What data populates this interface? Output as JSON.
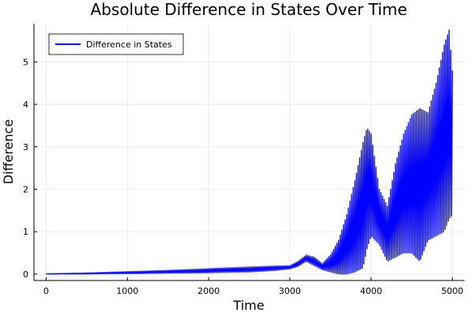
{
  "chart_data": {
    "type": "line",
    "title": "Absolute Difference in States Over Time",
    "xlabel": "Time",
    "ylabel": "Difference",
    "xlim": [
      -150,
      5150
    ],
    "ylim": [
      -0.15,
      5.9
    ],
    "xticks": [
      0,
      1000,
      2000,
      3000,
      4000,
      5000
    ],
    "yticks": [
      0,
      1,
      2,
      3,
      4,
      5
    ],
    "xtick_labels": [
      "0",
      "1000",
      "2000",
      "3000",
      "4000",
      "5000"
    ],
    "ytick_labels": [
      "0",
      "1",
      "2",
      "3",
      "4",
      "5"
    ],
    "grid": true,
    "legend_position": "top-left",
    "series": [
      {
        "name": "Difference in States",
        "color": "#0000ff",
        "envelope": {
          "x": [
            0,
            500,
            1000,
            1500,
            2000,
            2500,
            2800,
            3000,
            3100,
            3200,
            3300,
            3400,
            3500,
            3600,
            3700,
            3800,
            3900,
            3950,
            4000,
            4100,
            4200,
            4300,
            4400,
            4500,
            4600,
            4700,
            4800,
            4900,
            4960,
            5000
          ],
          "upper": [
            0.01,
            0.03,
            0.06,
            0.09,
            0.13,
            0.17,
            0.19,
            0.2,
            0.3,
            0.45,
            0.4,
            0.25,
            0.45,
            0.8,
            1.4,
            2.2,
            3.1,
            3.45,
            3.3,
            2.0,
            1.6,
            2.6,
            3.3,
            3.75,
            3.9,
            3.8,
            4.5,
            5.4,
            5.75,
            4.8
          ],
          "lower": [
            0.0,
            0.0,
            0.01,
            0.02,
            0.03,
            0.05,
            0.08,
            0.12,
            0.18,
            0.3,
            0.2,
            0.1,
            0.05,
            0.0,
            0.0,
            0.05,
            0.15,
            0.6,
            0.9,
            0.7,
            0.3,
            0.4,
            0.5,
            0.5,
            0.3,
            0.8,
            0.9,
            1.0,
            1.3,
            1.4
          ]
        }
      }
    ]
  }
}
